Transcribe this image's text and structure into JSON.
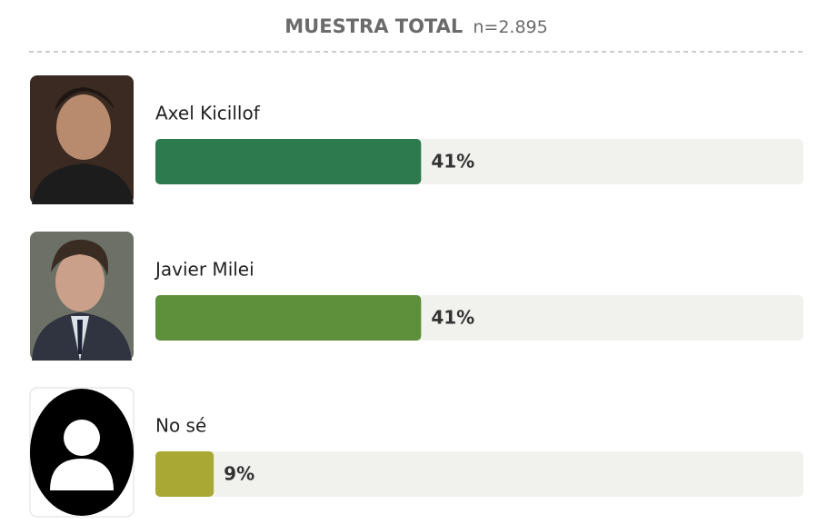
{
  "chart_data": {
    "type": "bar",
    "orientation": "horizontal",
    "title": "MUESTRA TOTAL",
    "subtitle": "n=2.895",
    "categories": [
      "Axel Kicillof",
      "Javier Milei",
      "No sé"
    ],
    "values": [
      41,
      41,
      9
    ],
    "value_labels": [
      "41%",
      "41%",
      "9%"
    ],
    "colors": [
      "#2e7a4f",
      "#5e8f3a",
      "#a9a834"
    ],
    "track_color": "#f1f2ee",
    "xlim": [
      0,
      100
    ]
  }
}
